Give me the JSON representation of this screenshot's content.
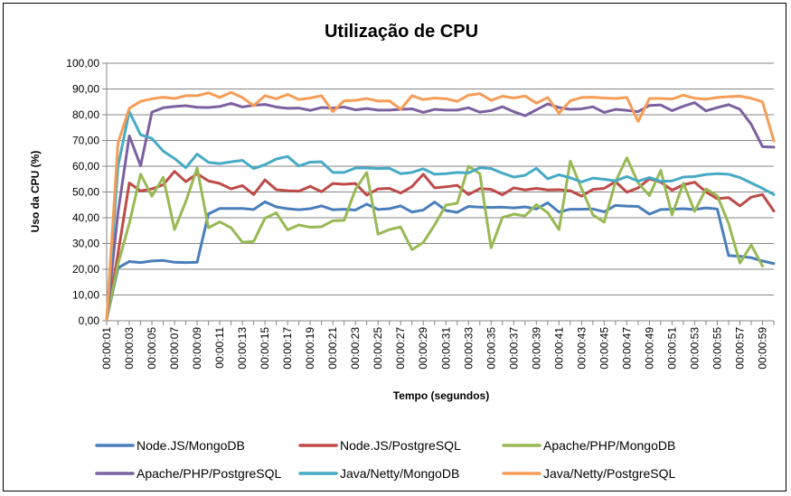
{
  "chart_data": {
    "type": "line",
    "title": "Utilização de CPU",
    "xlabel": "Tempo (segundos)",
    "ylabel": "Uso da CPU (%)",
    "ylim": [
      0,
      100
    ],
    "ytick_step": 10,
    "ytick_labels": [
      "0,00",
      "10,00",
      "20,00",
      "30,00",
      "40,00",
      "50,00",
      "60,00",
      "70,00",
      "80,00",
      "90,00",
      "100,00"
    ],
    "x_labels": [
      "00:00:01",
      "00:00:03",
      "00:00:05",
      "00:00:07",
      "00:00:09",
      "00:00:11",
      "00:00:13",
      "00:00:15",
      "00:00:17",
      "00:00:19",
      "00:00:21",
      "00:00:23",
      "00:00:25",
      "00:00:27",
      "00:00:29",
      "00:00:31",
      "00:00:33",
      "00:00:35",
      "00:00:37",
      "00:00:39",
      "00:00:41",
      "00:00:43",
      "00:00:45",
      "00:00:47",
      "00:00:49",
      "00:00:51",
      "00:00:53",
      "00:00:55",
      "00:00:57",
      "00:00:59"
    ],
    "grid": "horizontal",
    "legend_position": "bottom",
    "series": [
      {
        "name": "Node.JS/MongoDB",
        "color": "#4a7ebb",
        "values": [
          0.5,
          20.5,
          23.0,
          22.6,
          23.2,
          23.4,
          22.7,
          22.6,
          22.7,
          41.5,
          43.6,
          43.6,
          43.6,
          43.2,
          46.2,
          44.2,
          43.5,
          43.1,
          43.5,
          44.6,
          43.1,
          43.3,
          43.0,
          45.3,
          43.2,
          43.5,
          44.6,
          42.2,
          43.0,
          46.1,
          42.8,
          42.1,
          44.4,
          44.1,
          44.0,
          44.1,
          43.8,
          44.2,
          43.4,
          45.8,
          42.2,
          43.3,
          43.3,
          43.4,
          42.3,
          44.8,
          44.5,
          44.4,
          41.4,
          43.2,
          43.3,
          43.5,
          43.2,
          43.8,
          43.4,
          25.3,
          25.0,
          24.5,
          23.2,
          22.2
        ]
      },
      {
        "name": "Node.JS/PostgreSQL",
        "color": "#be4b48",
        "values": [
          0.5,
          26.0,
          53.5,
          50.4,
          51.2,
          52.8,
          58.0,
          54.0,
          57.1,
          54.3,
          53.3,
          51.2,
          52.5,
          49.0,
          54.7,
          50.9,
          50.5,
          50.3,
          52.2,
          50.1,
          53.3,
          53.0,
          53.3,
          48.8,
          51.2,
          51.4,
          49.6,
          52.1,
          56.9,
          51.6,
          52.0,
          52.6,
          49.0,
          51.3,
          51.0,
          48.9,
          51.6,
          50.8,
          51.4,
          50.8,
          50.9,
          50.5,
          48.4,
          51.0,
          51.4,
          54.0,
          49.9,
          51.6,
          55.1,
          53.8,
          50.7,
          52.8,
          53.8,
          50.0,
          47.4,
          47.8,
          44.6,
          48.0,
          49.0,
          42.6
        ]
      },
      {
        "name": "Apache/PHP/MongoDB",
        "color": "#98b954",
        "values": [
          0.5,
          22.0,
          37.8,
          56.9,
          48.4,
          55.7,
          35.4,
          46.3,
          59.3,
          36.1,
          38.4,
          36.1,
          30.5,
          30.8,
          39.8,
          41.9,
          35.3,
          37.2,
          36.3,
          36.5,
          38.8,
          39.0,
          51.0,
          57.6,
          33.6,
          35.4,
          36.4,
          27.6,
          30.4,
          37.2,
          44.9,
          45.6,
          60.0,
          57.1,
          28.3,
          40.1,
          41.4,
          40.7,
          45.1,
          42.0,
          35.4,
          62.0,
          51.3,
          41.1,
          38.3,
          54.0,
          63.3,
          53.5,
          48.6,
          58.4,
          41.1,
          53.4,
          42.5,
          51.2,
          48.5,
          37.8,
          22.4,
          29.4,
          21.2,
          null
        ]
      },
      {
        "name": "Apache/PHP/PostgreSQL",
        "color": "#7d60a0",
        "values": [
          0.5,
          42.0,
          71.8,
          60.2,
          81.0,
          82.7,
          83.2,
          83.5,
          82.9,
          82.8,
          83.2,
          84.4,
          83.0,
          83.7,
          84.0,
          83.0,
          82.5,
          82.6,
          81.7,
          82.8,
          82.6,
          83.0,
          81.9,
          82.4,
          81.8,
          81.8,
          82.1,
          82.3,
          80.9,
          82.1,
          81.8,
          81.8,
          82.7,
          81.0,
          81.6,
          83.1,
          81.2,
          79.6,
          81.9,
          84.2,
          82.8,
          82.1,
          82.3,
          83.1,
          80.9,
          82.1,
          81.7,
          81.2,
          83.6,
          83.8,
          81.6,
          83.3,
          84.7,
          81.5,
          82.8,
          83.9,
          82.1,
          76.3,
          67.6,
          67.4
        ]
      },
      {
        "name": "Java/Netty/MongoDB",
        "color": "#46aac5",
        "values": [
          0.5,
          60.0,
          81.2,
          72.2,
          70.8,
          65.9,
          63.0,
          59.4,
          64.7,
          61.5,
          61.0,
          61.7,
          62.3,
          59.1,
          60.6,
          62.8,
          63.8,
          60.1,
          61.6,
          61.7,
          57.6,
          57.6,
          59.3,
          59.3,
          59.1,
          59.2,
          57.1,
          57.6,
          59.0,
          56.9,
          57.1,
          57.6,
          57.4,
          59.4,
          59.1,
          57.3,
          55.8,
          56.5,
          59.2,
          55.1,
          56.7,
          55.5,
          53.9,
          55.4,
          54.9,
          54.3,
          56.0,
          54.2,
          55.6,
          54.1,
          54.3,
          55.8,
          56.0,
          56.8,
          57.1,
          56.9,
          55.6,
          53.5,
          51.4,
          49.0
        ]
      },
      {
        "name": "Java/Netty/PostgreSQL",
        "color": "#f59d56",
        "values": [
          0.5,
          69.0,
          82.5,
          85.2,
          86.2,
          86.8,
          86.3,
          87.4,
          87.4,
          88.5,
          86.7,
          88.7,
          86.7,
          83.5,
          87.4,
          86.2,
          87.9,
          85.9,
          86.5,
          87.4,
          81.2,
          85.4,
          85.6,
          86.3,
          85.3,
          85.4,
          82.1,
          87.4,
          85.9,
          86.5,
          86.2,
          85.2,
          87.6,
          88.2,
          85.6,
          87.2,
          86.5,
          87.3,
          84.5,
          86.7,
          80.6,
          85.4,
          86.7,
          86.8,
          86.5,
          86.3,
          86.7,
          77.4,
          86.3,
          86.3,
          86.1,
          87.6,
          86.4,
          86.0,
          86.7,
          87.0,
          87.2,
          86.4,
          85.0,
          69.8
        ]
      }
    ]
  }
}
